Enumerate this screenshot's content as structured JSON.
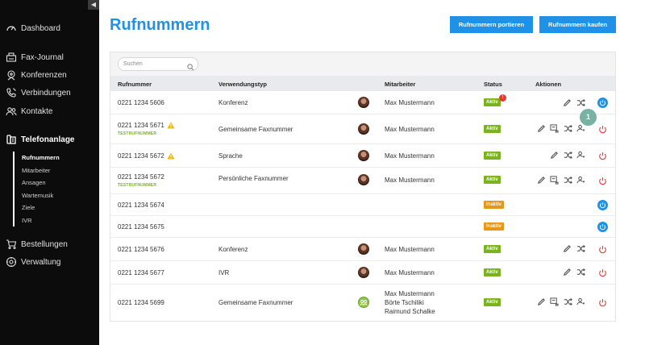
{
  "sidebar": {
    "collapse_icon": "caret-left-icon",
    "items": [
      {
        "label": "Dashboard",
        "icon": "speedometer-icon"
      },
      {
        "label": "Fax-Journal",
        "icon": "fax-icon"
      },
      {
        "label": "Konferenzen",
        "icon": "conference-icon"
      },
      {
        "label": "Verbindungen",
        "icon": "phone-calls-icon"
      },
      {
        "label": "Kontakte",
        "icon": "contacts-icon"
      },
      {
        "label": "Telefonanlage",
        "icon": "phone-system-icon"
      },
      {
        "label": "Bestellungen",
        "icon": "cart-icon"
      },
      {
        "label": "Verwaltung",
        "icon": "gear-icon"
      }
    ],
    "sub_items": [
      "Rufnummern",
      "Mitarbeiter",
      "Ansagen",
      "Wartemusik",
      "Ziele",
      "IVR"
    ]
  },
  "main": {
    "title": "Rufnummern",
    "port_label": "Rufnummern portieren",
    "buy_label": "Rufnummern kaufen",
    "search_placeholder": "Suchen",
    "columns": {
      "number": "Rufnummer",
      "type": "Verwendungstyp",
      "employee": "Mitarbeiter",
      "status": "Status",
      "actions": "Aktionen"
    },
    "rows": [
      {
        "number": "0221 1234 5606",
        "test": "",
        "type": "Konferenz",
        "employee": "Max Mustermann",
        "status": "Aktiv",
        "notification": "!"
      },
      {
        "number": "0221 1234 5671",
        "test": "TESTRUFNUMMER",
        "type": "Gemeinsame Faxnummer",
        "employee": "Max Mustermann",
        "status": "Aktiv",
        "notification": ""
      },
      {
        "number": "0221 1234 5672",
        "test": "",
        "type": "Sprache",
        "employee": "Max Mustermann",
        "status": "Aktiv",
        "notification": ""
      },
      {
        "number": "0221 1234 5672",
        "test": "TESTRUFNUMMER",
        "type": "Persönliche Faxnummer",
        "employee": "Max Mustermann",
        "status": "Aktiv",
        "notification": ""
      },
      {
        "number": "0221 1234 5674",
        "test": "",
        "type": "",
        "employee": "",
        "status": "Inaktiv",
        "notification": ""
      },
      {
        "number": "0221 1234 5675",
        "test": "",
        "type": "",
        "employee": "",
        "status": "Inaktiv",
        "notification": ""
      },
      {
        "number": "0221 1234 5676",
        "test": "",
        "type": "Konferenz",
        "employee": "Max Mustermann",
        "status": "Aktiv",
        "notification": ""
      },
      {
        "number": "0221 1234 5677",
        "test": "",
        "type": "IVR",
        "employee": "Max Mustermann",
        "status": "Aktiv",
        "notification": ""
      },
      {
        "number": "0221 1234 5699",
        "test": "",
        "type": "Gemeinsame Faxnummer",
        "employee": "Max Mustermann",
        "employee2": "Börte Tschiliki",
        "employee3": "Raimund Schalke",
        "status": "Aktiv",
        "notification": ""
      }
    ],
    "step_marker": "1"
  },
  "colors": {
    "accent": "#1f91e6",
    "active": "#7ab31e",
    "inactive": "#e6961e",
    "power_off": "#e53935",
    "warning": "#f2b705"
  }
}
